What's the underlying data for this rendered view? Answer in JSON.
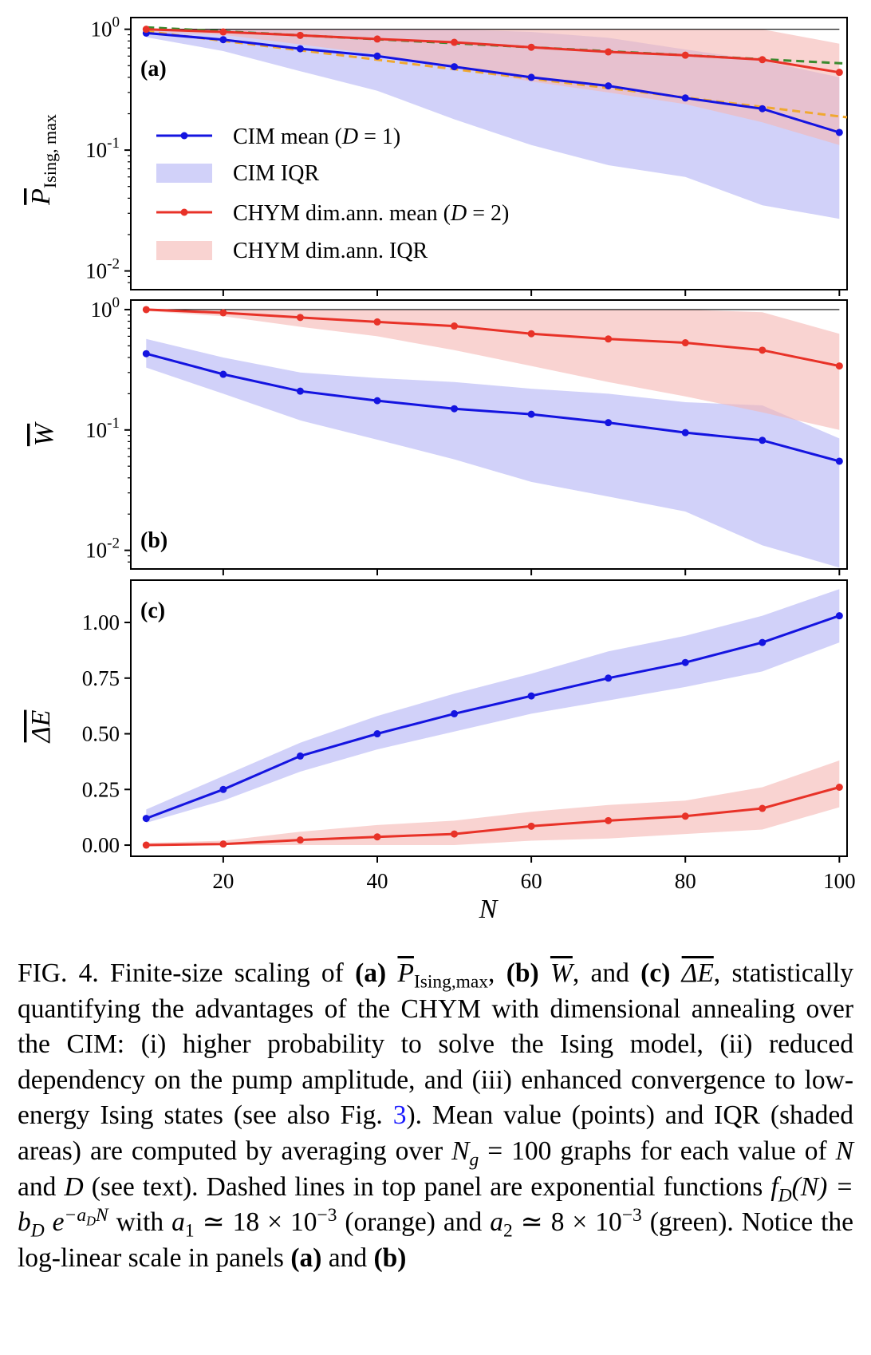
{
  "chart_data": [
    {
      "panel": "(a)",
      "type": "line",
      "yscale": "log",
      "ylabel": "P̄Ising, max",
      "xlim": [
        8,
        101
      ],
      "ylim": [
        0.007,
        1.25
      ],
      "yticks": [
        {
          "value": 1,
          "label": "10^0"
        },
        {
          "value": 0.1,
          "label": "10^-1"
        },
        {
          "value": 0.01,
          "label": "10^-2"
        }
      ],
      "x": [
        10,
        20,
        30,
        40,
        50,
        60,
        70,
        80,
        90,
        100
      ],
      "series": [
        {
          "name": "CIM mean (D = 1)",
          "color": "#1414e0",
          "role": "mean",
          "values": [
            0.93,
            0.82,
            0.69,
            0.6,
            0.49,
            0.4,
            0.34,
            0.27,
            0.22,
            0.14
          ]
        },
        {
          "name": "CIM IQR",
          "color": "#b3b3f5",
          "role": "iqr",
          "lower": [
            0.86,
            0.66,
            0.45,
            0.31,
            0.18,
            0.11,
            0.075,
            0.06,
            0.035,
            0.027
          ],
          "upper": [
            1.0,
            1.0,
            1.0,
            1.0,
            1.0,
            0.95,
            0.85,
            0.68,
            0.55,
            0.4
          ]
        },
        {
          "name": "CHYM dim.ann. mean (D = 2)",
          "color": "#e83228",
          "role": "mean",
          "values": [
            1.0,
            0.95,
            0.89,
            0.83,
            0.78,
            0.71,
            0.65,
            0.61,
            0.56,
            0.44
          ]
        },
        {
          "name": "CHYM dim.ann. IQR",
          "color": "#f5b5b2",
          "role": "iqr",
          "lower": [
            0.95,
            0.9,
            0.75,
            0.62,
            0.48,
            0.37,
            0.3,
            0.24,
            0.17,
            0.11
          ],
          "upper": [
            1.0,
            1.0,
            1.0,
            1.0,
            1.0,
            1.0,
            1.0,
            1.0,
            1.0,
            0.76
          ]
        },
        {
          "name": "exponential fit (orange)",
          "color": "#f0a830",
          "role": "fit",
          "b": 1.15,
          "a": 0.018
        },
        {
          "name": "exponential fit (green)",
          "color": "#3a8a2e",
          "role": "fit",
          "b": 1.12,
          "a": 0.0076
        }
      ],
      "reference_line": 1
    },
    {
      "panel": "(b)",
      "type": "line",
      "yscale": "log",
      "ylabel": "W̄",
      "xlim": [
        8,
        101
      ],
      "ylim": [
        0.007,
        1.2
      ],
      "yticks": [
        {
          "value": 1,
          "label": "10^0"
        },
        {
          "value": 0.1,
          "label": "10^-1"
        },
        {
          "value": 0.01,
          "label": "10^-2"
        }
      ],
      "x": [
        10,
        20,
        30,
        40,
        50,
        60,
        70,
        80,
        90,
        100
      ],
      "series": [
        {
          "name": "CIM mean",
          "color": "#1414e0",
          "role": "mean",
          "values": [
            0.43,
            0.29,
            0.21,
            0.175,
            0.15,
            0.135,
            0.115,
            0.095,
            0.082,
            0.055
          ]
        },
        {
          "name": "CIM IQR",
          "color": "#b3b3f5",
          "role": "iqr",
          "lower": [
            0.33,
            0.2,
            0.12,
            0.083,
            0.057,
            0.037,
            0.028,
            0.021,
            0.011,
            0.0072
          ],
          "upper": [
            0.57,
            0.4,
            0.3,
            0.27,
            0.25,
            0.22,
            0.2,
            0.17,
            0.16,
            0.085
          ]
        },
        {
          "name": "CHYM mean",
          "color": "#e83228",
          "role": "mean",
          "values": [
            1.0,
            0.94,
            0.86,
            0.79,
            0.73,
            0.63,
            0.57,
            0.53,
            0.46,
            0.34
          ]
        },
        {
          "name": "CHYM IQR",
          "color": "#f5b5b2",
          "role": "iqr",
          "lower": [
            0.97,
            0.88,
            0.72,
            0.6,
            0.46,
            0.34,
            0.25,
            0.19,
            0.14,
            0.1
          ],
          "upper": [
            1.0,
            1.0,
            1.0,
            1.0,
            1.0,
            1.0,
            1.0,
            1.0,
            0.95,
            0.63
          ]
        }
      ],
      "reference_line": 1
    },
    {
      "panel": "(c)",
      "type": "line",
      "yscale": "linear",
      "ylabel": "ΔE",
      "xlabel": "N",
      "xlim": [
        8,
        101
      ],
      "ylim": [
        -0.05,
        1.19
      ],
      "yticks": [
        {
          "value": 0,
          "label": "0.00"
        },
        {
          "value": 0.25,
          "label": "0.25"
        },
        {
          "value": 0.5,
          "label": "0.50"
        },
        {
          "value": 0.75,
          "label": "0.75"
        },
        {
          "value": 1.0,
          "label": "1.00"
        }
      ],
      "xticks": [
        {
          "value": 20,
          "label": "20"
        },
        {
          "value": 40,
          "label": "40"
        },
        {
          "value": 60,
          "label": "60"
        },
        {
          "value": 80,
          "label": "80"
        },
        {
          "value": 100,
          "label": "100"
        }
      ],
      "x": [
        10,
        20,
        30,
        40,
        50,
        60,
        70,
        80,
        90,
        100
      ],
      "series": [
        {
          "name": "CIM mean",
          "color": "#1414e0",
          "role": "mean",
          "values": [
            0.12,
            0.25,
            0.4,
            0.5,
            0.59,
            0.67,
            0.75,
            0.82,
            0.91,
            1.03
          ]
        },
        {
          "name": "CIM IQR",
          "color": "#b3b3f5",
          "role": "iqr",
          "lower": [
            0.1,
            0.2,
            0.33,
            0.43,
            0.51,
            0.59,
            0.65,
            0.71,
            0.78,
            0.91
          ],
          "upper": [
            0.16,
            0.31,
            0.46,
            0.58,
            0.68,
            0.77,
            0.87,
            0.94,
            1.03,
            1.15
          ]
        },
        {
          "name": "CHYM mean",
          "color": "#e83228",
          "role": "mean",
          "values": [
            0.0,
            0.005,
            0.023,
            0.037,
            0.05,
            0.085,
            0.11,
            0.13,
            0.165,
            0.26
          ]
        },
        {
          "name": "CHYM IQR",
          "color": "#f5b5b2",
          "role": "iqr",
          "lower": [
            0.0,
            0.0,
            0.0,
            0.0,
            0.0,
            0.02,
            0.03,
            0.05,
            0.07,
            0.17
          ],
          "upper": [
            0.01,
            0.02,
            0.06,
            0.09,
            0.11,
            0.15,
            0.18,
            0.2,
            0.26,
            0.38
          ]
        }
      ]
    }
  ],
  "legend": {
    "cim_mean_prefix": "CIM mean (",
    "cim_mean_var": "D",
    "cim_mean_suffix": " = 1)",
    "cim_iqr": "CIM IQR",
    "chym_mean_prefix": "CHYM dim.ann. mean (",
    "chym_mean_var": "D",
    "chym_mean_suffix": " = 2)",
    "chym_iqr": "CHYM dim.ann. IQR"
  },
  "axis_labels": {
    "a_main": "P",
    "a_sub": "Ising, max",
    "b_main": "W",
    "c_main": "ΔE",
    "x": "N"
  },
  "caption": {
    "fig": "FIG. 4.",
    "t1": " Finite-size scaling of ",
    "a": "(a)",
    "p": "P",
    "p_sub": "Ising,max",
    "t2": ", ",
    "b": "(b)",
    "w": "W",
    "t3": ", and ",
    "c": "(c)",
    "de": "ΔE",
    "t4": ", statistically quantifying the advantages of the CHYM with dimensional annealing over the CIM: (i) higher probability to solve the Ising model, (ii) reduced dependency on the pump amplitude, and (iii) enhanced convergence to low-energy Ising states (see also Fig. ",
    "ref": "3",
    "t5": "). Mean value (points) and IQR (shaded areas) are computed by averaging over ",
    "ng": "N",
    "ng_sub": "g",
    "ng_val": " = 100",
    "t6": " graphs for each value of ",
    "n": "N",
    "t7": " and ",
    "d": "D",
    "t8": " (see text). Dashed lines in top panel are exponential functions ",
    "f": "f",
    "f_sub": "D",
    "f_arg": "(N) = b",
    "f_bsub": "D",
    "f_e": " e",
    "f_exp": "−a",
    "f_expsub": "D",
    "f_expN": "N",
    "t9": " with ",
    "a1": "a",
    "a1_sub": "1",
    "a1_val": " ≃ 18 × 10",
    "a1_exp": "−3",
    "t10": " (orange) and ",
    "a2": "a",
    "a2_sub": "2",
    "a2_val": " ≃ 8 × 10",
    "a2_exp": "−3",
    "t11": " (green). Notice the log-linear scale in panels ",
    "a_end": "(a)",
    "t12": " and ",
    "b_end": "(b)"
  }
}
